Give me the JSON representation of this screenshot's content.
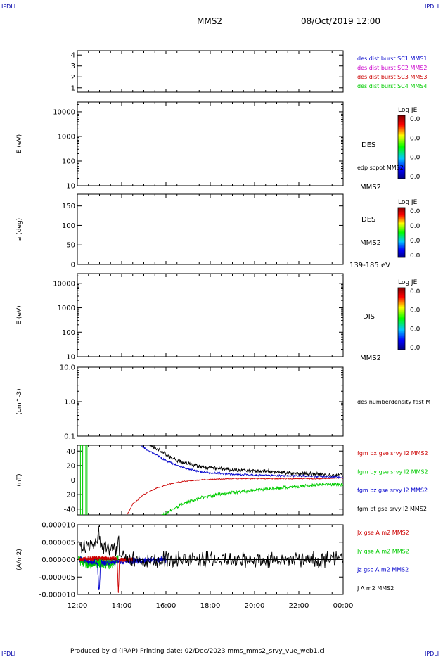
{
  "header": {
    "corner_label": "IPDLI",
    "title": "MMS2",
    "date": "08/Oct/2019 12:00"
  },
  "footer": {
    "text": "Produced by cl (IRAP)   Printing date: 02/Dec/2023   mms_mms2_srvy_vue_web1.cl"
  },
  "time_axis": {
    "tick_labels": [
      "12:00",
      "14:00",
      "16:00",
      "18:00",
      "20:00",
      "22:00",
      "00:00"
    ],
    "start_hour": 12,
    "end_hour": 24
  },
  "colors": {
    "black": "#000000",
    "red": "#cc0000",
    "green": "#00cc00",
    "blue": "#0000cc",
    "magenta": "#cc00cc"
  },
  "chart_data": [
    {
      "type": "line",
      "panel": "spacecraft-index",
      "ylabel": "",
      "ylim": [
        0.6,
        4.4
      ],
      "yticks": [
        "1",
        "2",
        "3",
        "4"
      ],
      "legend": [
        {
          "text": "des dist burst SC1 MMS1",
          "color": "#0000cc"
        },
        {
          "text": "des dist burst SC2 MMS2",
          "color": "#cc00cc"
        },
        {
          "text": "des dist burst SC3 MMS3",
          "color": "#cc0000"
        },
        {
          "text": "des dist burst SC4 MMS4",
          "color": "#00cc00"
        }
      ],
      "series": []
    },
    {
      "type": "heatmap",
      "panel": "des-energy-spectrogram",
      "ylabel": "E (eV)",
      "yscale": "log",
      "ylim": [
        10,
        25000
      ],
      "yticks": [
        "10",
        "100",
        "1000",
        "10000"
      ],
      "side_labels": [
        "DES",
        "edp scpot MMS2",
        "MMS2"
      ],
      "colorbar": {
        "title": "Log JE",
        "ticks": [
          "0.0",
          "0.0",
          "0.0",
          "0.0"
        ]
      },
      "series": []
    },
    {
      "type": "heatmap",
      "panel": "des-pitch-angle",
      "ylabel": "a (deg)",
      "ylim": [
        0,
        180
      ],
      "yticks": [
        "0",
        "50",
        "100",
        "150"
      ],
      "side_labels": [
        "DES",
        "MMS2",
        "139-185 eV"
      ],
      "colorbar": {
        "title": "Log JE",
        "ticks": [
          "0.0",
          "0.0",
          "0.0",
          "0.0"
        ]
      },
      "series": []
    },
    {
      "type": "heatmap",
      "panel": "dis-energy-spectrogram",
      "ylabel": "E (eV)",
      "yscale": "log",
      "ylim": [
        10,
        25000
      ],
      "yticks": [
        "10",
        "100",
        "1000",
        "10000"
      ],
      "side_labels": [
        "DIS",
        "MMS2"
      ],
      "colorbar": {
        "title": "Log JE",
        "ticks": [
          "0.0",
          "0.0",
          "0.0",
          "0.0"
        ]
      },
      "series": []
    },
    {
      "type": "line",
      "panel": "number-density",
      "ylabel": "(cm^-3)",
      "yscale": "log",
      "ylim": [
        0.1,
        10
      ],
      "yticks": [
        "0.1",
        "1.0",
        "10.0"
      ],
      "legend": [
        {
          "text": "des numberdensity fast M",
          "color": "#000000"
        }
      ],
      "series": []
    },
    {
      "type": "line",
      "panel": "magnetic-field",
      "ylabel": "(nT)",
      "ylim": [
        -48,
        48
      ],
      "yticks": [
        "-40",
        "-20",
        "0",
        "20",
        "40"
      ],
      "legend": [
        {
          "text": "fgm bx gse srvy l2 MMS2",
          "color": "#cc0000"
        },
        {
          "text": "fgm by gse srvy l2 MMS2",
          "color": "#00cc00"
        },
        {
          "text": "fgm bz gse srvy l2 MMS2",
          "color": "#0000cc"
        },
        {
          "text": "fgm bt gse srvy l2 MMS2",
          "color": "#000000"
        }
      ],
      "series": [
        {
          "id": "bt",
          "color": "#000000",
          "noise": 3,
          "x": [
            15.0,
            15.5,
            16.0,
            16.5,
            17.0,
            17.5,
            18.0,
            19.0,
            20.0,
            21.0,
            22.0,
            23.0,
            23.5,
            24.0
          ],
          "y": [
            55,
            45,
            35,
            27,
            22,
            19,
            17,
            14,
            13,
            11,
            9,
            8,
            6,
            8
          ]
        },
        {
          "id": "bz",
          "color": "#0000cc",
          "noise": 1.5,
          "x": [
            14.9,
            15.5,
            16.0,
            16.5,
            17.0,
            17.5,
            18.0,
            19.0,
            20.0,
            21.0,
            22.0,
            23.0,
            24.0
          ],
          "y": [
            46,
            36,
            27,
            20,
            15,
            12,
            10,
            8,
            7,
            6,
            6,
            5,
            4
          ]
        },
        {
          "id": "bx",
          "color": "#cc0000",
          "noise": 0.8,
          "x": [
            14.2,
            14.5,
            15.0,
            15.5,
            16.0,
            16.5,
            17.0,
            17.5,
            18.0,
            19.0,
            20.0,
            21.0,
            22.0,
            23.0,
            24.0
          ],
          "y": [
            -50,
            -33,
            -20,
            -12,
            -7,
            -3,
            -1,
            0,
            1,
            2,
            2,
            2,
            2,
            2,
            3
          ]
        },
        {
          "id": "by",
          "color": "#00cc00",
          "noise": 2.5,
          "x": [
            15.8,
            16.5,
            17.0,
            17.5,
            18.0,
            19.0,
            20.0,
            21.0,
            22.0,
            23.0,
            24.0
          ],
          "y": [
            -50,
            -37,
            -30,
            -25,
            -22,
            -17,
            -14,
            -11,
            -9,
            -6,
            -6
          ]
        }
      ]
    },
    {
      "type": "line",
      "panel": "current-density",
      "ylabel": "(A/m2)",
      "ylim": [
        -1e-05,
        1e-05
      ],
      "yticks": [
        "-0.000010",
        "-0.000005",
        "0.000000",
        "0.000005",
        "0.000010"
      ],
      "legend": [
        {
          "text": "Jx gse A m2 MMS2",
          "color": "#cc0000"
        },
        {
          "text": "Jy gse A m2 MMS2",
          "color": "#00cc00"
        },
        {
          "text": "Jz gse A m2 MMS2",
          "color": "#0000cc"
        },
        {
          "text": "J A m2 MMS2",
          "color": "#000000"
        }
      ],
      "series": [
        {
          "id": "jy",
          "color": "#00cc00",
          "noise": 1.5e-06,
          "x": [
            12.05,
            12.5,
            13.0,
            13.5,
            13.85
          ],
          "y": [
            0,
            -1.2e-06,
            -8e-07,
            -1.5e-06,
            0
          ]
        },
        {
          "id": "jz",
          "color": "#0000cc",
          "noise": 1e-06,
          "x": [
            12.1,
            12.9,
            12.98,
            13.05,
            13.5,
            13.85,
            16.0
          ],
          "y": [
            0,
            -1e-06,
            -9.5e-06,
            -1e-06,
            -8e-07,
            -5e-07,
            0
          ]
        },
        {
          "id": "jx",
          "color": "#cc0000",
          "noise": 8e-07,
          "x": [
            12.1,
            13.0,
            13.8,
            13.85,
            13.9,
            14.5
          ],
          "y": [
            0,
            4e-07,
            3e-07,
            -9.8e-06,
            0,
            0
          ]
        },
        {
          "id": "j",
          "color": "#000000",
          "noise": 2.5e-06,
          "x": [
            12.05,
            12.3,
            12.6,
            12.9,
            12.97,
            13.05,
            13.4,
            13.8,
            13.86,
            13.92,
            14.5,
            16.5,
            24.0
          ],
          "y": [
            4e-06,
            3.5e-06,
            4e-06,
            5e-06,
            9.8e-06,
            3e-06,
            3e-06,
            3e-06,
            9.5e-06,
            2e-07,
            1e-07,
            5e-08,
            0
          ]
        }
      ]
    }
  ]
}
